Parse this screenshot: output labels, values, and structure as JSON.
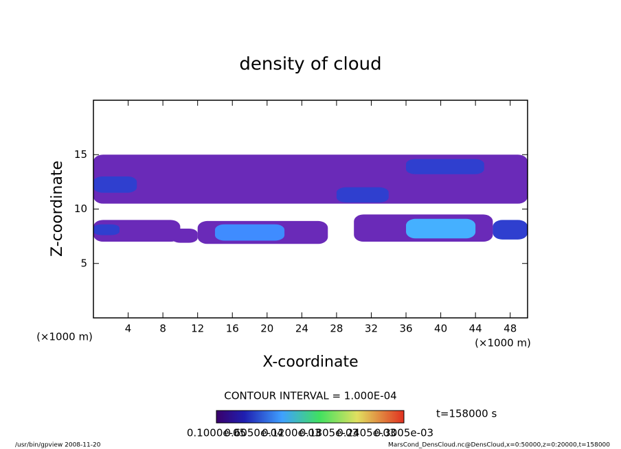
{
  "chart_data": {
    "type": "contour",
    "title": "density of cloud",
    "x_label": "X-coordinate",
    "y_label": "Z-coordinate",
    "x_unit": "(×1000 m)",
    "y_unit": "(×1000 m)",
    "xlim": [
      0,
      50
    ],
    "xticks": [
      4,
      8,
      12,
      16,
      20,
      24,
      28,
      32,
      36,
      40,
      44,
      48
    ],
    "ylim": [
      0,
      20
    ],
    "yticks": [
      5,
      10,
      15
    ],
    "contour_interval": "CONTOUR INTERVAL = 1.000E-04",
    "time_label": "t=158000 s",
    "colorbar_labels": [
      "0.1000e-05",
      "0.6050e-04",
      "0.1200e-03",
      "0.1805e-03",
      "0.2405e-03",
      "0.3005e-03"
    ],
    "regions": [
      {
        "x": [
          0,
          50
        ],
        "z": [
          10.5,
          15
        ],
        "color": "#6a2ab8"
      },
      {
        "x": [
          0,
          5
        ],
        "z": [
          11.5,
          13
        ],
        "color": "#2f3fcf"
      },
      {
        "x": [
          36,
          45
        ],
        "z": [
          13.2,
          14.6
        ],
        "color": "#2f3fcf"
      },
      {
        "x": [
          28,
          34
        ],
        "z": [
          10.6,
          12
        ],
        "color": "#2f3fcf"
      },
      {
        "x": [
          0,
          10
        ],
        "z": [
          7,
          9
        ],
        "color": "#6a2ab8"
      },
      {
        "x": [
          0,
          3
        ],
        "z": [
          7.6,
          8.6
        ],
        "color": "#2f3fcf"
      },
      {
        "x": [
          9,
          12
        ],
        "z": [
          6.9,
          8.2
        ],
        "color": "#6a2ab8"
      },
      {
        "x": [
          12,
          27
        ],
        "z": [
          6.8,
          8.9
        ],
        "color": "#6a2ab8"
      },
      {
        "x": [
          14,
          22
        ],
        "z": [
          7.1,
          8.6
        ],
        "color": "#3f8cff"
      },
      {
        "x": [
          30,
          46
        ],
        "z": [
          7,
          9.5
        ],
        "color": "#6a2ab8"
      },
      {
        "x": [
          36,
          44
        ],
        "z": [
          7.3,
          9.1
        ],
        "color": "#45b0ff"
      },
      {
        "x": [
          46,
          50
        ],
        "z": [
          7.2,
          9
        ],
        "color": "#2f3fcf"
      }
    ],
    "footer_left": "/usr/bin/gpview  2008-11-20",
    "footer_right": "MarsCond_DensCloud.nc@DensCloud,x=0:50000,z=0:20000,t=158000"
  }
}
